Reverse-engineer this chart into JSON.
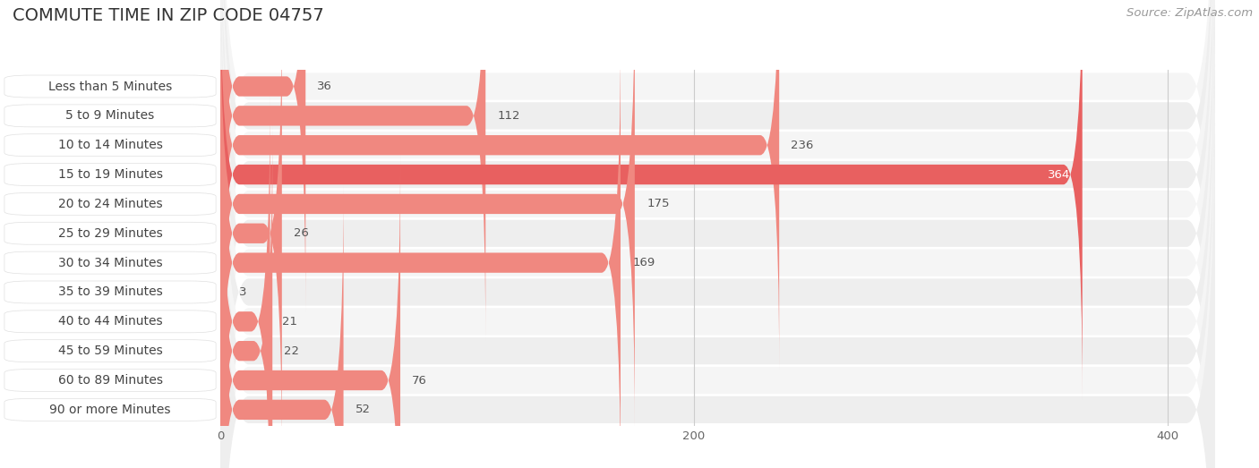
{
  "title": "COMMUTE TIME IN ZIP CODE 04757",
  "source": "Source: ZipAtlas.com",
  "categories": [
    "Less than 5 Minutes",
    "5 to 9 Minutes",
    "10 to 14 Minutes",
    "15 to 19 Minutes",
    "20 to 24 Minutes",
    "25 to 29 Minutes",
    "30 to 34 Minutes",
    "35 to 39 Minutes",
    "40 to 44 Minutes",
    "45 to 59 Minutes",
    "60 to 89 Minutes",
    "90 or more Minutes"
  ],
  "values": [
    36,
    112,
    236,
    364,
    175,
    26,
    169,
    3,
    21,
    22,
    76,
    52
  ],
  "bar_color_normal": "#f08880",
  "bar_color_max": "#e86060",
  "row_bg_light": "#f5f5f5",
  "row_bg_dark": "#eeeeee",
  "label_bg_color": "#ffffff",
  "background_color": "#ffffff",
  "xlim_max": 420,
  "xticks": [
    0,
    200,
    400
  ],
  "title_fontsize": 14,
  "label_fontsize": 10,
  "value_fontsize": 9.5,
  "source_fontsize": 9.5
}
